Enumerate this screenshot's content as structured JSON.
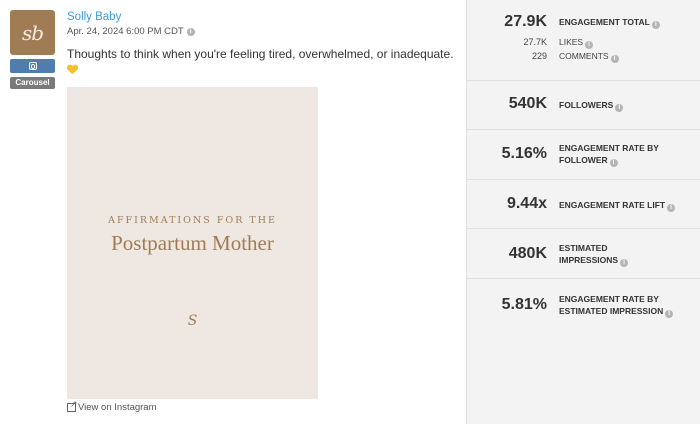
{
  "post": {
    "author": "Solly Baby",
    "avatar_text": "sb",
    "platform_icon": "instagram-icon",
    "post_type": "Carousel",
    "date": "Apr. 24, 2024 6:00 PM CDT",
    "caption": "Thoughts to think when you're feeling tired, overwhelmed, or inadequate.",
    "caption_emoji": "yellow-heart-icon",
    "media": {
      "kicker": "AFFIRMATIONS FOR THE",
      "title": "Postpartum Mother",
      "mark": "S"
    },
    "view_link": "View on Instagram"
  },
  "stats": {
    "engagement_total": {
      "value": "27.9K",
      "label": "ENGAGEMENT TOTAL"
    },
    "likes": {
      "value": "27.7K",
      "label": "LIKES"
    },
    "comments": {
      "value": "229",
      "label": "COMMENTS"
    },
    "followers": {
      "value": "540K",
      "label": "FOLLOWERS"
    },
    "engagement_rate_follower": {
      "value": "5.16%",
      "label": "ENGAGEMENT RATE BY FOLLOWER"
    },
    "engagement_rate_lift": {
      "value": "9.44x",
      "label": "ENGAGEMENT RATE LIFT"
    },
    "estimated_impressions": {
      "value": "480K",
      "label": "ESTIMATED IMPRESSIONS"
    },
    "engagement_rate_impression": {
      "value": "5.81%",
      "label": "ENGAGEMENT RATE BY ESTIMATED IMPRESSION"
    }
  },
  "colors": {
    "author_link": "#3e9bd6",
    "avatar_bg": "#a07c55",
    "instagram_badge": "#4f7dad",
    "media_bg": "#efe8e2",
    "stats_bg": "#f3f3f3"
  }
}
